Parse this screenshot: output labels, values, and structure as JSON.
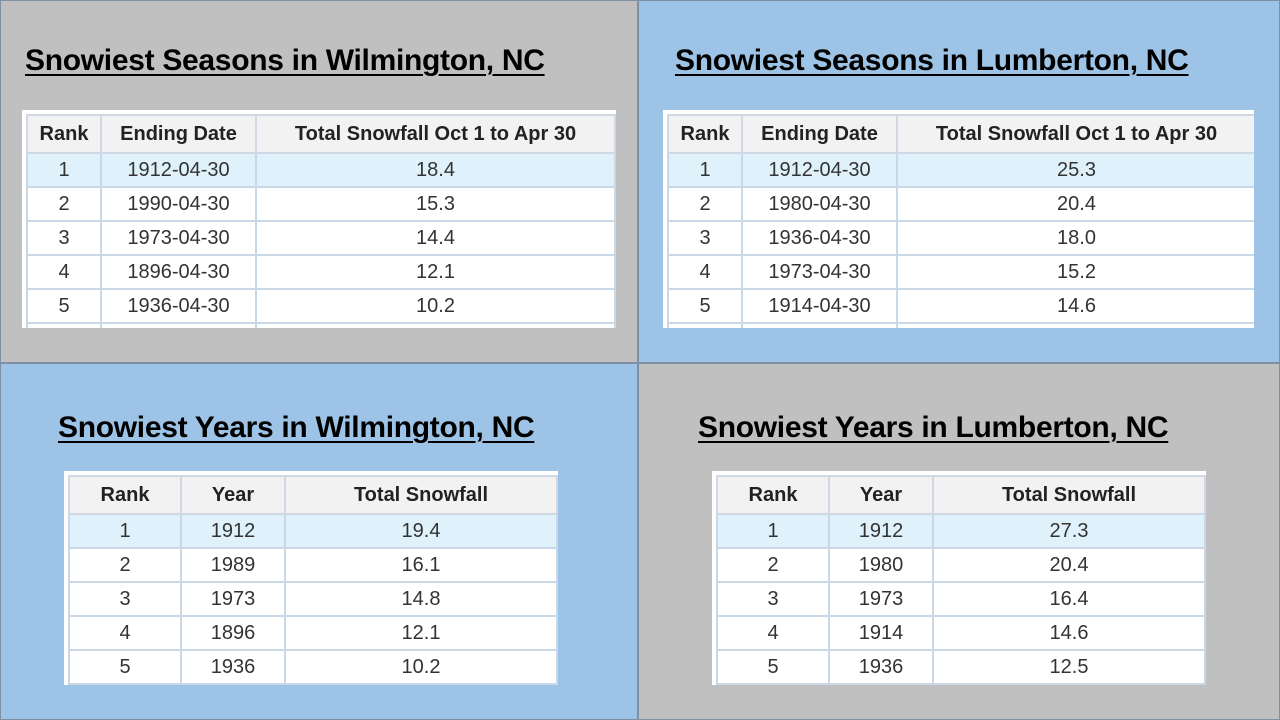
{
  "panels": [
    {
      "title": "Snowiest Seasons in Wilmington, NC",
      "headers": [
        "Rank",
        "Ending Date",
        "Total Snowfall Oct 1 to Apr 30"
      ],
      "rows": [
        [
          "1",
          "1912-04-30",
          "18.4"
        ],
        [
          "2",
          "1990-04-30",
          "15.3"
        ],
        [
          "3",
          "1973-04-30",
          "14.4"
        ],
        [
          "4",
          "1896-04-30",
          "12.1"
        ],
        [
          "5",
          "1936-04-30",
          "10.2"
        ]
      ]
    },
    {
      "title": "Snowiest Seasons in Lumberton, NC",
      "headers": [
        "Rank",
        "Ending Date",
        "Total Snowfall Oct 1 to Apr 30"
      ],
      "rows": [
        [
          "1",
          "1912-04-30",
          "25.3"
        ],
        [
          "2",
          "1980-04-30",
          "20.4"
        ],
        [
          "3",
          "1936-04-30",
          "18.0"
        ],
        [
          "4",
          "1973-04-30",
          "15.2"
        ],
        [
          "5",
          "1914-04-30",
          "14.6"
        ]
      ]
    },
    {
      "title": "Snowiest Years in Wilmington, NC",
      "headers": [
        "Rank",
        "Year",
        "Total Snowfall"
      ],
      "rows": [
        [
          "1",
          "1912",
          "19.4"
        ],
        [
          "2",
          "1989",
          "16.1"
        ],
        [
          "3",
          "1973",
          "14.8"
        ],
        [
          "4",
          "1896",
          "12.1"
        ],
        [
          "5",
          "1936",
          "10.2"
        ]
      ]
    },
    {
      "title": "Snowiest Years in Lumberton, NC",
      "headers": [
        "Rank",
        "Year",
        "Total Snowfall"
      ],
      "rows": [
        [
          "1",
          "1912",
          "27.3"
        ],
        [
          "2",
          "1980",
          "20.4"
        ],
        [
          "3",
          "1973",
          "16.4"
        ],
        [
          "4",
          "1914",
          "14.6"
        ],
        [
          "5",
          "1936",
          "12.5"
        ]
      ]
    }
  ],
  "colors": {
    "panel_gray": "#c0c0c0",
    "panel_blue": "#9dc3e6",
    "first_row_highlight": "#dff1fb"
  }
}
